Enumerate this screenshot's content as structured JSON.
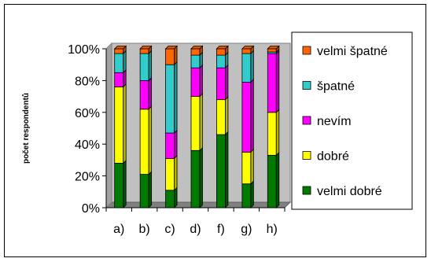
{
  "chart_data": {
    "type": "bar",
    "stacked": true,
    "percent": true,
    "title": "",
    "xlabel": "",
    "ylabel": "počet respondentů",
    "ylim": [
      0,
      100
    ],
    "y_ticks": [
      "0%",
      "20%",
      "40%",
      "60%",
      "80%",
      "100%"
    ],
    "grid": false,
    "legend_position": "right",
    "categories": [
      "a)",
      "b)",
      "c)",
      "d)",
      "f)",
      "g)",
      "h)"
    ],
    "series": [
      {
        "name": "velmi dobré",
        "color": "#007A00",
        "values": [
          28,
          21,
          11,
          36,
          46,
          15,
          33
        ]
      },
      {
        "name": "dobré",
        "color": "#FFFF00",
        "values": [
          48,
          41,
          20,
          34,
          22,
          20,
          27
        ]
      },
      {
        "name": "nevím",
        "color": "#FF00FF",
        "values": [
          9,
          18,
          16,
          18,
          20,
          44,
          37
        ]
      },
      {
        "name": "špatné",
        "color": "#33CCCC",
        "values": [
          12,
          17,
          43,
          8,
          8,
          18,
          1
        ]
      },
      {
        "name": "velmi špatné",
        "color": "#FF6600",
        "values": [
          3,
          3,
          10,
          4,
          4,
          3,
          2
        ]
      }
    ]
  }
}
